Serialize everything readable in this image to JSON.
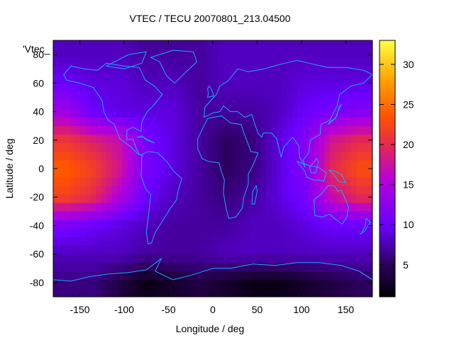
{
  "chart_data": {
    "type": "heatmap",
    "title": "VTEC / TECU 20070801_213.04500",
    "xlabel": "Longitude / deg",
    "ylabel": "Latitude / deg",
    "legend_label": "'Vtec_",
    "xlim": [
      -180,
      180
    ],
    "ylim": [
      -90,
      90
    ],
    "x_ticks": [
      -150,
      -100,
      -50,
      0,
      50,
      100,
      150
    ],
    "y_ticks": [
      -80,
      -60,
      -40,
      -20,
      0,
      20,
      40,
      60,
      80
    ],
    "colorbar": {
      "range": [
        1,
        33
      ],
      "ticks": [
        5,
        10,
        15,
        20,
        25,
        30
      ],
      "palette": "black-blue-purple-red-orange-yellow"
    },
    "longitudes": [
      -165,
      -135,
      -105,
      -75,
      -45,
      -15,
      15,
      45,
      75,
      105,
      135,
      165
    ],
    "latitudes": [
      80,
      60,
      40,
      20,
      0,
      -20,
      -40,
      -60,
      -80
    ],
    "values": [
      [
        8,
        8,
        8,
        7,
        7,
        7,
        8,
        8,
        8,
        8,
        8,
        8
      ],
      [
        10,
        9,
        9,
        8,
        8,
        7,
        8,
        8,
        8,
        9,
        9,
        9
      ],
      [
        14,
        10,
        9,
        9,
        9,
        7,
        7,
        7,
        8,
        10,
        11,
        12
      ],
      [
        21,
        19,
        17,
        11,
        9,
        7,
        5,
        6,
        9,
        12,
        18,
        20
      ],
      [
        24,
        22,
        18,
        11,
        9,
        7,
        5,
        6,
        9,
        12,
        20,
        23
      ],
      [
        22,
        20,
        15,
        10,
        8,
        7,
        6,
        7,
        9,
        11,
        17,
        20
      ],
      [
        11,
        10,
        9,
        8,
        7,
        7,
        7,
        8,
        8,
        9,
        10,
        10
      ],
      [
        8,
        8,
        8,
        7,
        7,
        7,
        8,
        8,
        8,
        8,
        8,
        8
      ],
      [
        6,
        6,
        4,
        2,
        3,
        4,
        3,
        2,
        2,
        3,
        4,
        5
      ]
    ]
  },
  "map_outlines": {
    "style": "world coastlines",
    "color": "#1ea8ff"
  }
}
